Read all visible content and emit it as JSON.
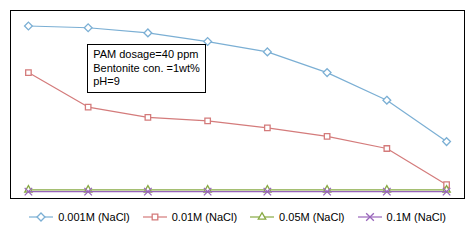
{
  "chart_data": {
    "type": "line",
    "x": [
      0,
      1,
      2,
      3,
      4,
      5,
      6,
      7
    ],
    "series": [
      {
        "name": "0.001M (NaCl)",
        "color": "#7bafd4",
        "marker": "diamond",
        "values": [
          0.97,
          0.96,
          0.93,
          0.88,
          0.82,
          0.7,
          0.54,
          0.3
        ]
      },
      {
        "name": "0.01M (NaCl)",
        "color": "#d47b7b",
        "marker": "square",
        "values": [
          0.7,
          0.5,
          0.44,
          0.42,
          0.38,
          0.33,
          0.26,
          0.05
        ]
      },
      {
        "name": "0.05M (NaCl)",
        "color": "#88aa44",
        "marker": "triangle",
        "values": [
          0.02,
          0.02,
          0.02,
          0.02,
          0.02,
          0.02,
          0.02,
          0.02
        ]
      },
      {
        "name": "0.1M (NaCl)",
        "color": "#9966bb",
        "marker": "x",
        "values": [
          0.01,
          0.01,
          0.01,
          0.01,
          0.01,
          0.01,
          0.01,
          0.01
        ]
      }
    ],
    "xlim": [
      -0.3,
      7.3
    ],
    "ylim": [
      -0.03,
      1.06
    ],
    "xticks": [],
    "yticks": [],
    "tick_labels": false,
    "grid": false,
    "legend": "bottom",
    "annotation": "PAM dosage=40 ppm\nBentonite con. =1wt%\npH=9"
  }
}
